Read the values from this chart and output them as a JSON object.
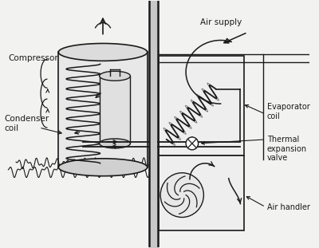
{
  "bg_color": "#f2f2f0",
  "lc": "#1a1a1a",
  "fig_bg": "#f2f2f0",
  "labels": {
    "compressor": "Compressor",
    "condenser_coil": "Condenser\ncoil",
    "evaporator_coil": "Evaporator\ncoil",
    "thermal_expansion": "Thermal\nexpansion\nvalve",
    "air_handler": "Air handler",
    "air_supply": "Air supply"
  }
}
